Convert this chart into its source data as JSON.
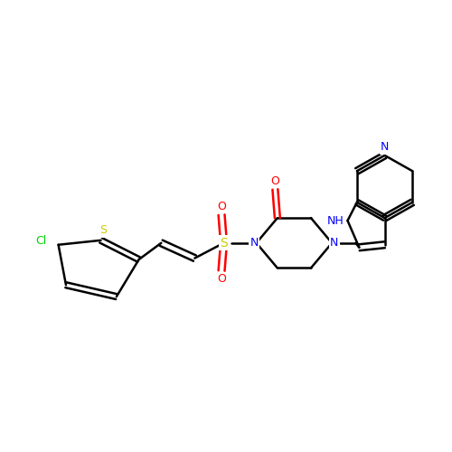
{
  "background_color": "#ffffff",
  "bond_color": "#000000",
  "atom_colors": {
    "N": "#0000ff",
    "O": "#ff0000",
    "S_sulfone": "#cccc00",
    "S_thio": "#cccc00",
    "Cl": "#00cc00",
    "C": "#000000",
    "NH": "#0000ff"
  },
  "figsize": [
    5.0,
    5.0
  ],
  "dpi": 100,
  "xlim": [
    0,
    10
  ],
  "ylim": [
    0,
    10
  ]
}
